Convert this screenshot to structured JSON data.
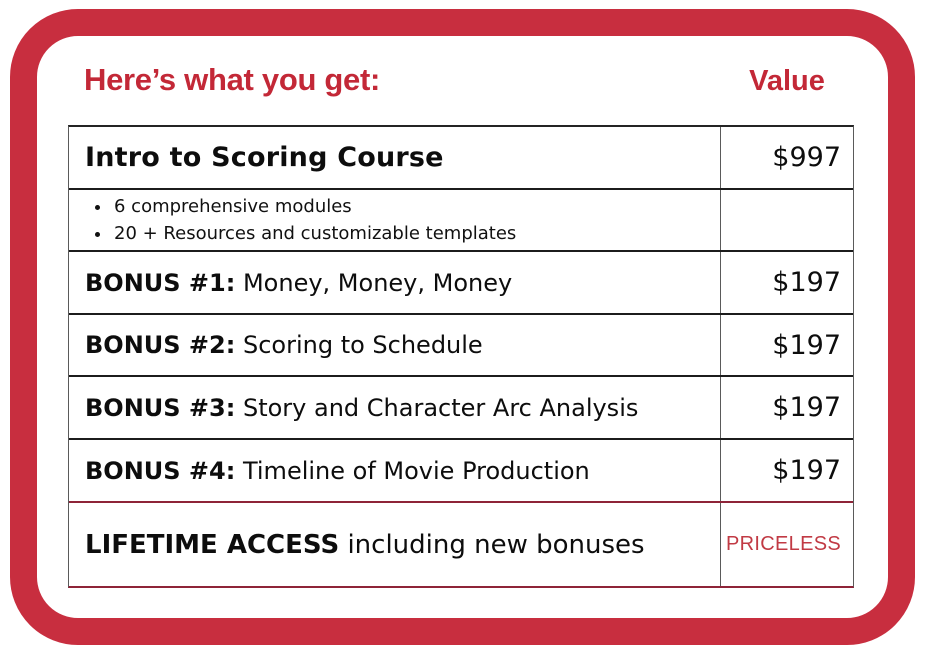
{
  "header": {
    "title": "Here’s what you get:",
    "value_label": "Value"
  },
  "colors": {
    "accent_red": "#c82e3f",
    "heading_red": "#c32837",
    "maroon_line": "#8e2438",
    "priceless_red": "#c13a44"
  },
  "table": {
    "rows": [
      {
        "type": "title",
        "label": "Intro to Scoring Course",
        "value": "$997"
      },
      {
        "type": "bullets",
        "bullets": [
          "6 comprehensive modules",
          "20 + Resources and customizable templates"
        ],
        "value": ""
      },
      {
        "type": "bonus",
        "label": "BONUS #1:",
        "text": "Money, Money, Money",
        "value": "$197"
      },
      {
        "type": "bonus",
        "label": "BONUS #2:",
        "text": "Scoring to Schedule",
        "value": "$197"
      },
      {
        "type": "bonus",
        "label": "BONUS #3:",
        "text": "Story and Character Arc Analysis",
        "value": "$197"
      },
      {
        "type": "bonus",
        "label": "BONUS #4:",
        "text": "Timeline of Movie Production",
        "value": "$197"
      },
      {
        "type": "lifetime",
        "label": "LIFETIME ACCESS",
        "text": "including new bonuses",
        "value": "PRICELESS"
      }
    ]
  }
}
